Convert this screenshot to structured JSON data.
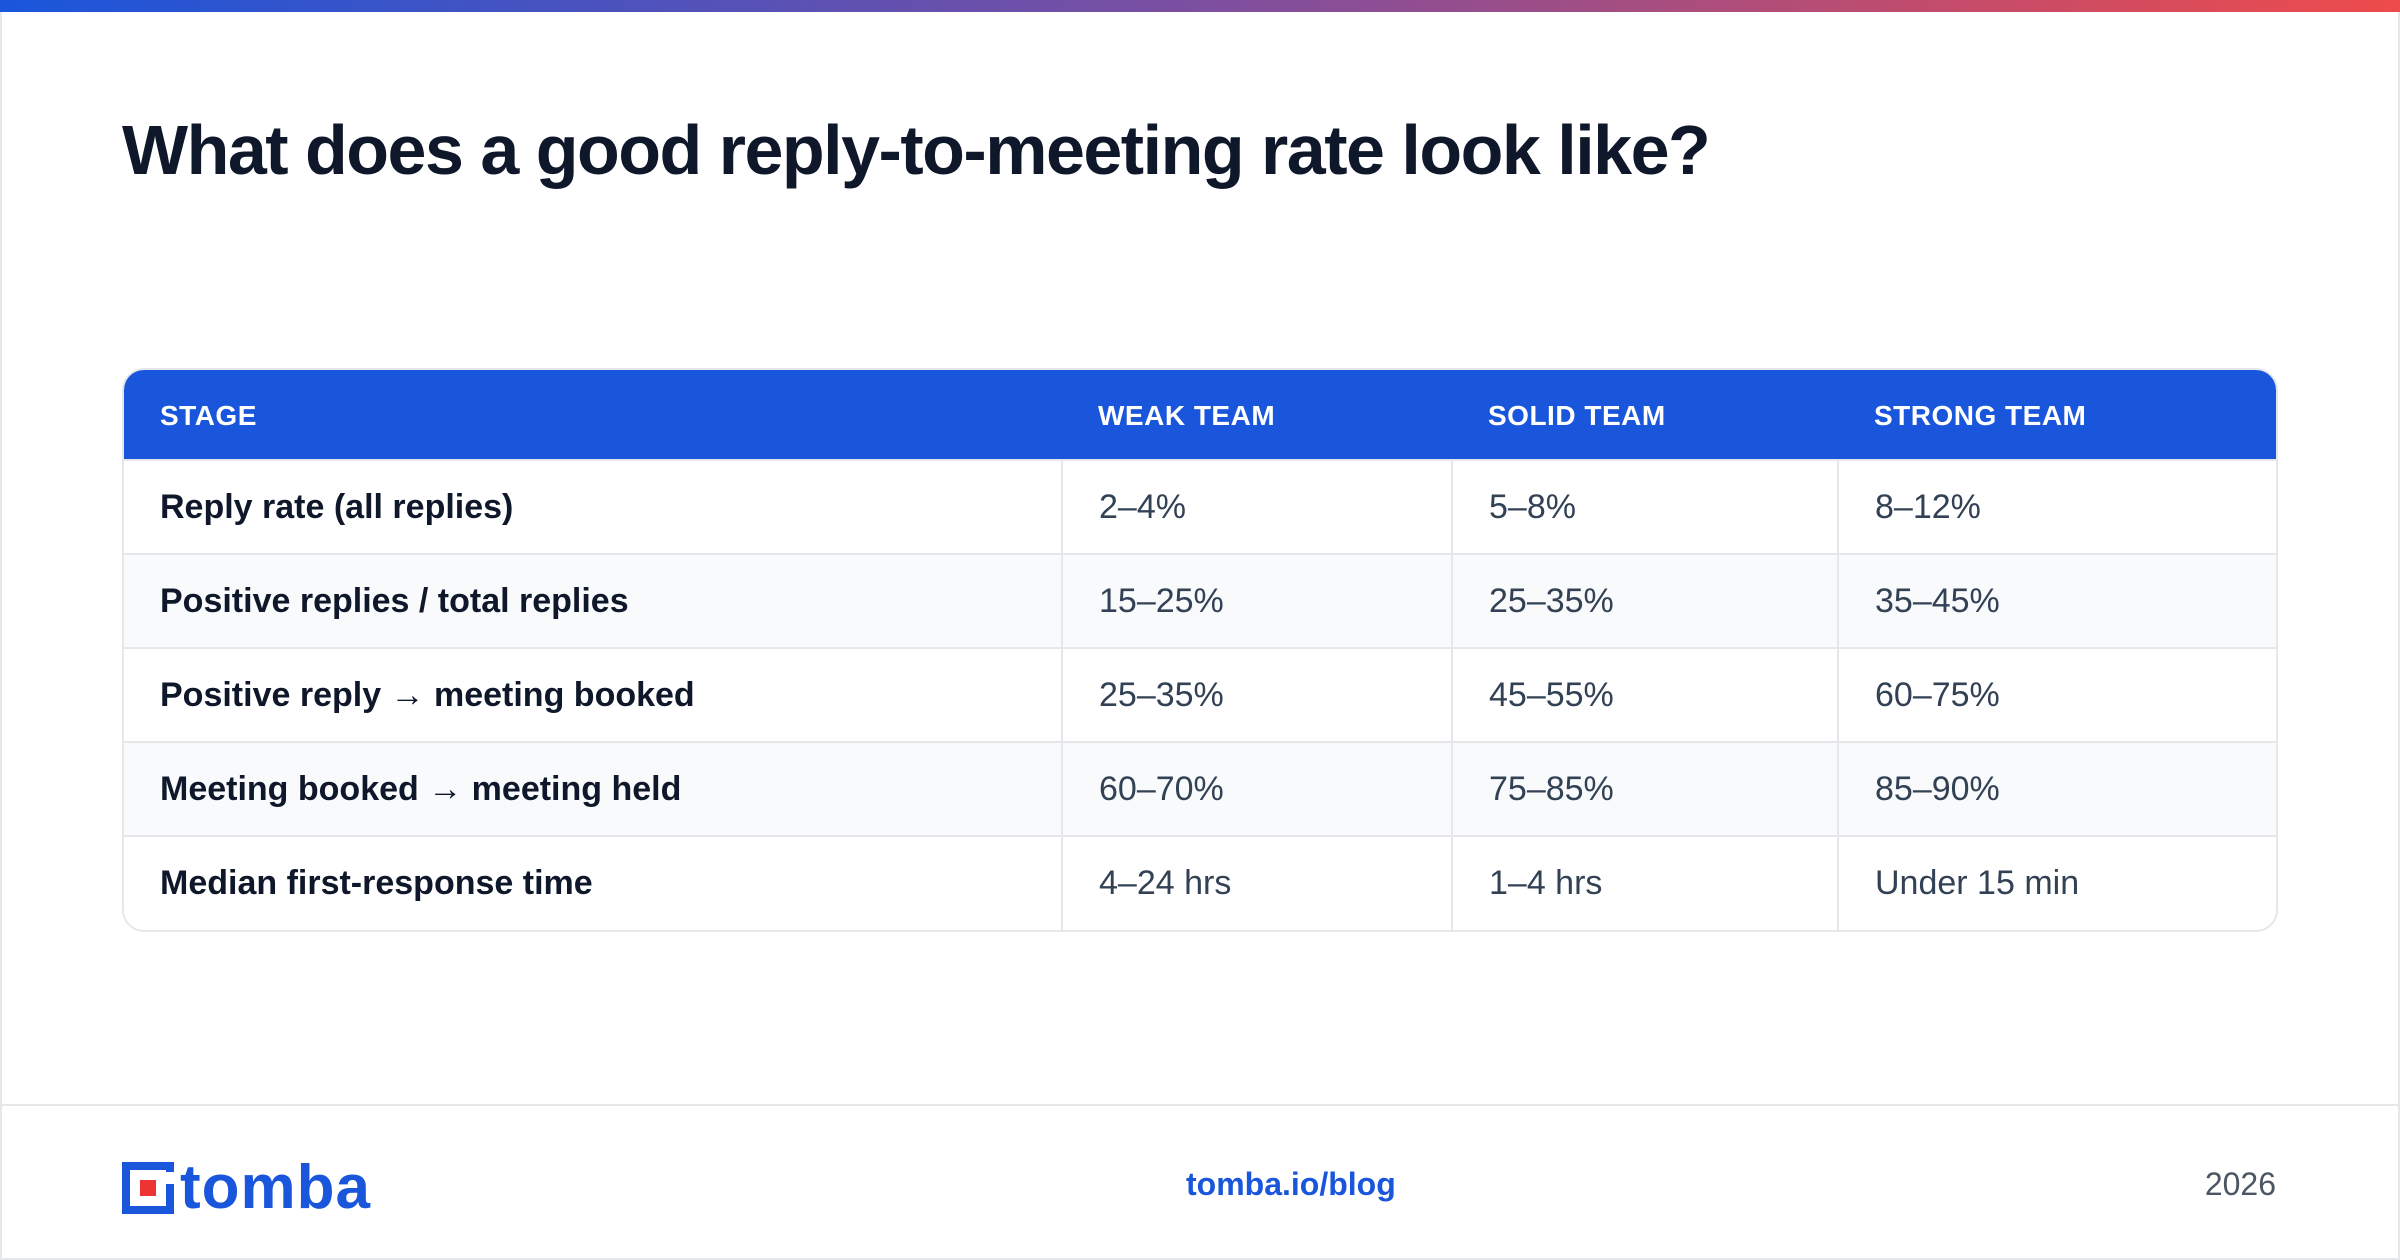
{
  "title": "What does a good reply-to-meeting rate look like?",
  "table": {
    "headers": [
      "STAGE",
      "WEAK TEAM",
      "SOLID TEAM",
      "STRONG TEAM"
    ],
    "rows": [
      [
        "Reply rate (all replies)",
        "2–4%",
        "5–8%",
        "8–12%"
      ],
      [
        "Positive replies / total replies",
        "15–25%",
        "25–35%",
        "35–45%"
      ],
      [
        "Positive reply → meeting booked",
        "25–35%",
        "45–55%",
        "60–75%"
      ],
      [
        "Meeting booked → meeting held",
        "60–70%",
        "75–85%",
        "85–90%"
      ],
      [
        "Median first-response time",
        "4–24 hrs",
        "1–4 hrs",
        "Under 15 min"
      ]
    ]
  },
  "footer": {
    "logo_text": "tomba",
    "logo_icon": "tomba-logo-icon",
    "link": "tomba.io/blog",
    "year": "2026"
  },
  "colors": {
    "brand": "#1a56db",
    "gradient_start": "#1a56db",
    "gradient_end": "#ee4b4b",
    "logo_accent": "#ee3333"
  }
}
